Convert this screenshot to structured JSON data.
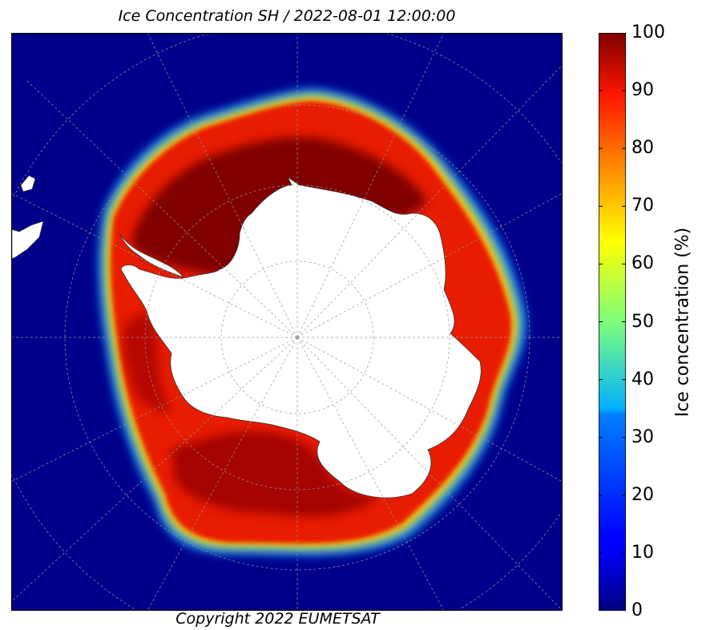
{
  "title": "Ice Concentration SH / 2022-08-01 12:00:00",
  "copyright": "Copyright 2022 EUMETSAT",
  "colorbar": {
    "label": "Ice concentration (%)",
    "min": 0,
    "max": 100,
    "ticks": [
      "0",
      "10",
      "20",
      "30",
      "40",
      "50",
      "60",
      "70",
      "80",
      "90",
      "100"
    ],
    "colormap": "jet"
  },
  "colors": {
    "ocean": "#00007f",
    "land": "#ffffff",
    "high_ice": "#7f0000",
    "ice": "#ee1800"
  }
}
